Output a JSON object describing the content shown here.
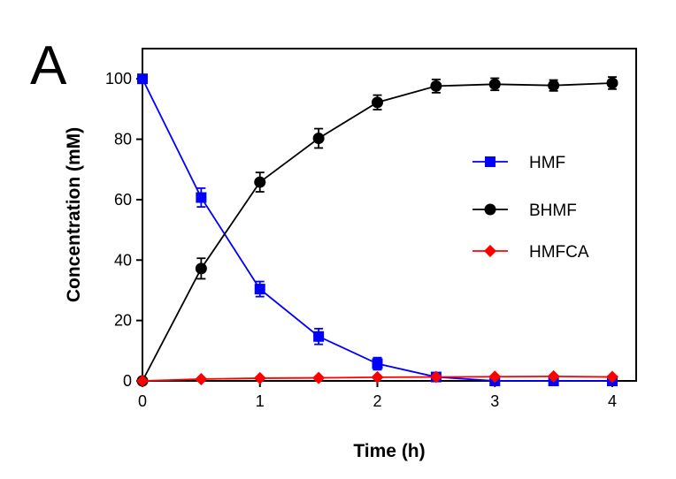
{
  "panel_label": "A",
  "chart_data": {
    "type": "line",
    "xlabel": "Time (h)",
    "ylabel": "Concentration (mM)",
    "xlim": [
      0,
      4
    ],
    "ylim": [
      0,
      110
    ],
    "xticks": [
      0,
      1,
      2,
      3,
      4
    ],
    "yticks": [
      0,
      20,
      40,
      60,
      80,
      100
    ],
    "grid": false,
    "legend_position": "right-middle",
    "x": [
      0,
      0.5,
      1,
      1.5,
      2,
      2.5,
      3,
      3.5,
      4
    ],
    "series": [
      {
        "name": "HMF",
        "color": "#0000ff",
        "marker": "square",
        "values": [
          100,
          60.7,
          30.4,
          14.7,
          5.7,
          1.3,
          0,
          0,
          0
        ],
        "errors": [
          0.8,
          3.1,
          2.5,
          2.6,
          2.0,
          0.8,
          0.3,
          0.3,
          0.3
        ]
      },
      {
        "name": "BHMF",
        "color": "#000000",
        "marker": "circle",
        "values": [
          0,
          37.2,
          65.8,
          80.3,
          92.2,
          97.6,
          98.2,
          97.8,
          98.6
        ],
        "errors": [
          0.3,
          3.4,
          3.2,
          3.2,
          2.4,
          2.2,
          2.0,
          1.8,
          2.0
        ]
      },
      {
        "name": "HMFCA",
        "color": "#ff0000",
        "marker": "diamond",
        "values": [
          0,
          0.6,
          0.9,
          1.0,
          1.2,
          1.3,
          1.4,
          1.5,
          1.3
        ],
        "errors": [
          0,
          0,
          0,
          0,
          0,
          0,
          0,
          0,
          0
        ]
      }
    ]
  }
}
